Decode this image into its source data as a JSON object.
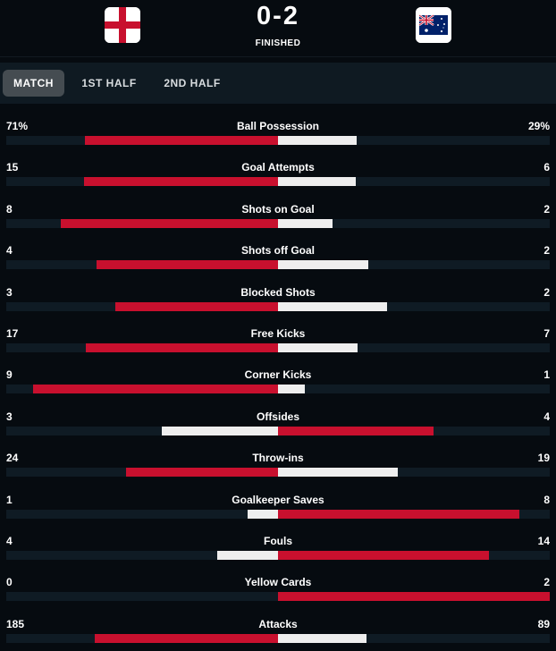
{
  "match": {
    "score": "0-2",
    "status": "FINISHED",
    "home_flag": "england-flag-icon",
    "away_flag": "australia-flag-icon"
  },
  "tabs": [
    {
      "label": "MATCH",
      "active": true
    },
    {
      "label": "1ST HALF",
      "active": false
    },
    {
      "label": "2ND HALF",
      "active": false
    }
  ],
  "colors": {
    "leader": "#c8102e",
    "trailer": "#eeeeee",
    "track": "#0f1b24",
    "background": "#060b10"
  },
  "stats": [
    {
      "label": "Ball Possession",
      "home": "71%",
      "away": "29%",
      "home_num": 71,
      "away_num": 29
    },
    {
      "label": "Goal Attempts",
      "home": "15",
      "away": "6",
      "home_num": 15,
      "away_num": 6
    },
    {
      "label": "Shots on Goal",
      "home": "8",
      "away": "2",
      "home_num": 8,
      "away_num": 2
    },
    {
      "label": "Shots off Goal",
      "home": "4",
      "away": "2",
      "home_num": 4,
      "away_num": 2
    },
    {
      "label": "Blocked Shots",
      "home": "3",
      "away": "2",
      "home_num": 3,
      "away_num": 2
    },
    {
      "label": "Free Kicks",
      "home": "17",
      "away": "7",
      "home_num": 17,
      "away_num": 7
    },
    {
      "label": "Corner Kicks",
      "home": "9",
      "away": "1",
      "home_num": 9,
      "away_num": 1
    },
    {
      "label": "Offsides",
      "home": "3",
      "away": "4",
      "home_num": 3,
      "away_num": 4
    },
    {
      "label": "Throw-ins",
      "home": "24",
      "away": "19",
      "home_num": 24,
      "away_num": 19
    },
    {
      "label": "Goalkeeper Saves",
      "home": "1",
      "away": "8",
      "home_num": 1,
      "away_num": 8
    },
    {
      "label": "Fouls",
      "home": "4",
      "away": "14",
      "home_num": 4,
      "away_num": 14
    },
    {
      "label": "Yellow Cards",
      "home": "0",
      "away": "2",
      "home_num": 0,
      "away_num": 2
    },
    {
      "label": "Attacks",
      "home": "185",
      "away": "89",
      "home_num": 185,
      "away_num": 89
    }
  ]
}
